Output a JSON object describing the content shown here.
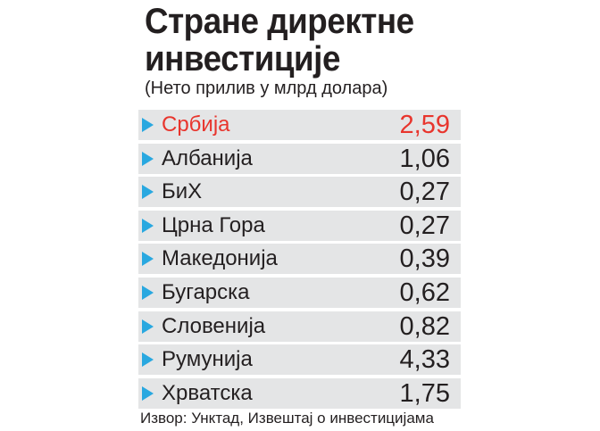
{
  "header": {
    "title": [
      "Стране директне",
      "инвестиције"
    ],
    "subtitle": "(Нето прилив у млрд долара)"
  },
  "table": {
    "rows": [
      [
        "Србија",
        "2,59"
      ],
      [
        "Албанија",
        "1,06"
      ],
      [
        "БиХ",
        "0,27"
      ],
      [
        "Црна Гора",
        "0,27"
      ],
      [
        "Македонија",
        "0,39"
      ],
      [
        "Бугарска",
        "0,62"
      ],
      [
        "Словенија",
        "0,82"
      ],
      [
        "Румунија",
        "4,33"
      ],
      [
        "Хрватска",
        "1,75"
      ]
    ]
  },
  "footer": {
    "source": "Извор: Унктад, Извештај о инвестицијама"
  }
}
